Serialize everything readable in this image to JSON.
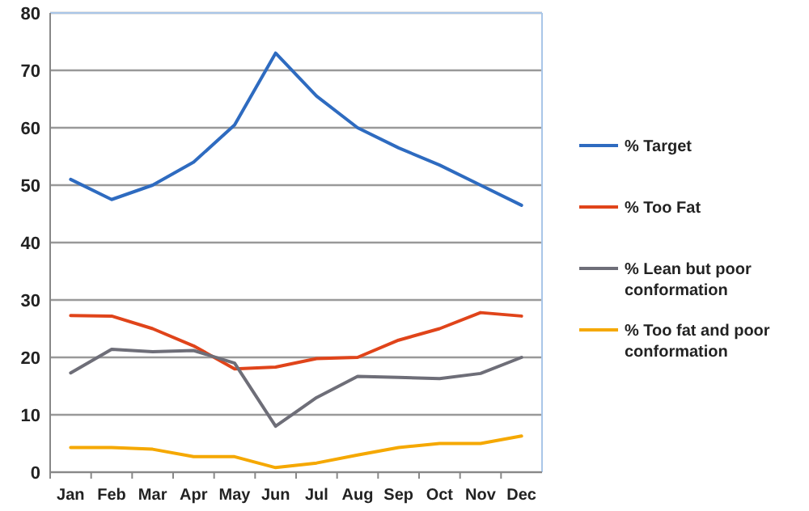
{
  "chart_data": {
    "type": "line",
    "categories": [
      "Jan",
      "Feb",
      "Mar",
      "Apr",
      "May",
      "Jun",
      "Jul",
      "Aug",
      "Sep",
      "Oct",
      "Nov",
      "Dec"
    ],
    "series": [
      {
        "name": "% Target",
        "color": "#2e6bc0",
        "values": [
          51,
          47.5,
          50,
          54,
          60.5,
          73,
          65.5,
          60,
          56.5,
          53.5,
          50,
          46.5
        ]
      },
      {
        "name": "% Too Fat",
        "color": "#e0441a",
        "values": [
          27.3,
          27.2,
          25,
          22,
          18,
          18.3,
          19.8,
          20,
          23,
          25,
          27.8,
          27.2
        ]
      },
      {
        "name": "% Lean but poor conformation",
        "color": "#6e6e78",
        "values": [
          17.3,
          21.4,
          21,
          21.2,
          19,
          8,
          13,
          16.7,
          16.5,
          16.3,
          17.2,
          20
        ]
      },
      {
        "name": "% Too fat and poor conformation",
        "color": "#f5a800",
        "values": [
          4.3,
          4.3,
          4,
          2.7,
          2.7,
          0.8,
          1.6,
          3,
          4.3,
          5,
          5,
          6.3
        ]
      }
    ],
    "ylim": [
      0,
      80
    ],
    "yticks": [
      0,
      10,
      20,
      30,
      40,
      50,
      60,
      70,
      80
    ],
    "grid": "y",
    "legend": "right",
    "marker": "none",
    "line_style": "solid"
  }
}
